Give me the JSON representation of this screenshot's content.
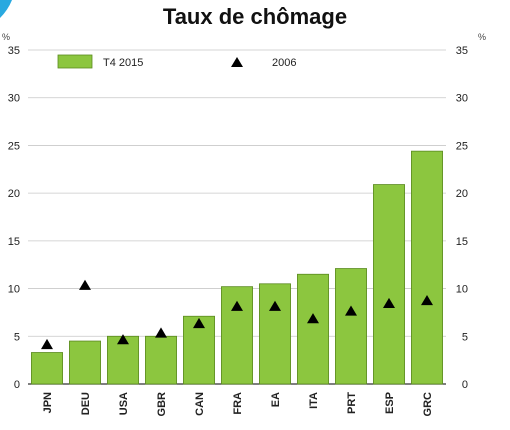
{
  "chart_data": {
    "type": "bar",
    "title": "Taux de chômage",
    "ylabel_left": "%",
    "ylabel_right": "%",
    "ylim": [
      0,
      35
    ],
    "yticks": [
      0,
      5,
      10,
      15,
      20,
      25,
      30,
      35
    ],
    "categories": [
      "JPN",
      "DEU",
      "USA",
      "GBR",
      "CAN",
      "FRA",
      "EA",
      "ITA",
      "PRT",
      "ESP",
      "GRC"
    ],
    "series": [
      {
        "name": "T4 2015",
        "kind": "bar",
        "color": "#8cc63f",
        "values": [
          3.3,
          4.5,
          5.0,
          5.0,
          7.1,
          10.2,
          10.5,
          11.5,
          12.1,
          20.9,
          24.4
        ]
      },
      {
        "name": "2006",
        "kind": "marker",
        "marker": "triangle",
        "color": "#000000",
        "values": [
          4.1,
          10.3,
          4.6,
          5.3,
          6.3,
          8.1,
          8.1,
          6.8,
          7.6,
          8.4,
          8.7
        ]
      }
    ],
    "legend_position": "top-left",
    "grid": true
  },
  "colors": {
    "bar_fill": "#8cc63f",
    "bar_stroke": "#5a8a1f",
    "grid": "#c8c8c8",
    "axis": "#333333",
    "marker": "#000000",
    "corner_accent": "#29a9e0"
  }
}
